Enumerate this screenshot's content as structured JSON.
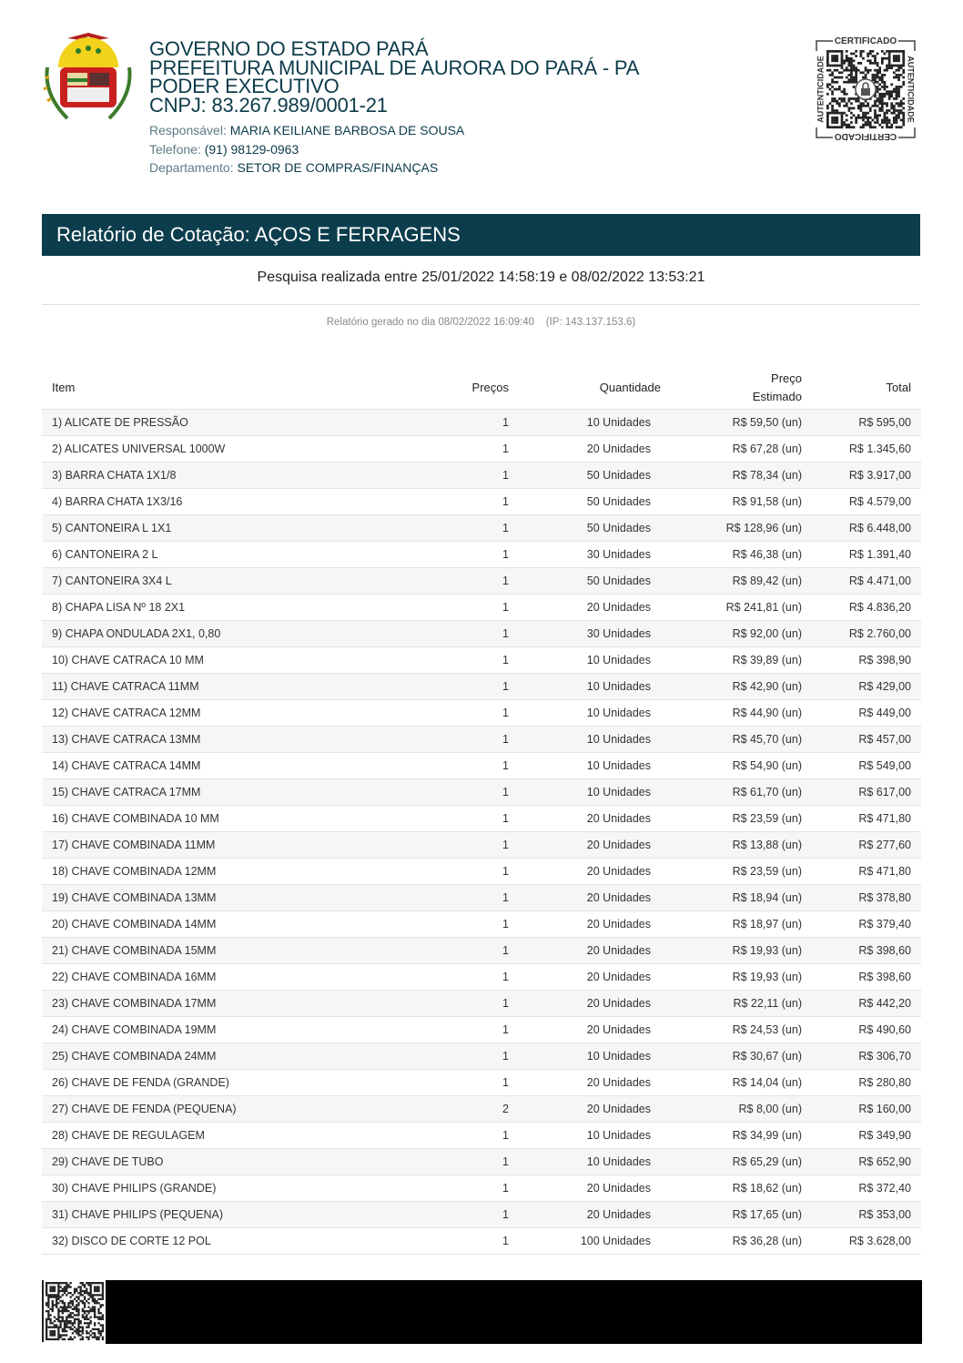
{
  "header": {
    "title_lines": [
      "GOVERNO DO ESTADO PARÁ",
      "PREFEITURA MUNICIPAL DE AURORA DO PARÁ - PA",
      "PODER EXECUTIVO",
      "CNPJ: 83.267.989/0001-21"
    ],
    "responsavel_label": "Responsável:",
    "responsavel": "MARIA KEILIANE BARBOSA DE SOUSA",
    "telefone_label": "Telefone:",
    "telefone": "(91) 98129-0963",
    "departamento_label": "Departamento:",
    "departamento": "SETOR DE COMPRAS/FINANÇAS",
    "seal_text_top": "CERTIFICADO",
    "seal_text_side": "AUTENTICIDADE"
  },
  "report": {
    "title": "Relatório de Cotação: AÇOS E FERRAGENS",
    "period": "Pesquisa realizada entre 25/01/2022 14:58:19 e 08/02/2022 13:53:21",
    "generated": "Relatório gerado no dia 08/02/2022 16:09:40    (IP: 143.137.153.6)"
  },
  "colors": {
    "brand": "#0c3d4c",
    "row_alt": "#f6f6f6"
  },
  "table": {
    "headers": {
      "item": "Item",
      "precos": "Preços",
      "quantidade": "Quantidade",
      "estimado_1": "Preço",
      "estimado_2": "Estimado",
      "total": "Total"
    },
    "rows": [
      [
        "1) ALICATE DE PRESSÃO",
        "1",
        "10 Unidades",
        "R$ 59,50 (un)",
        "R$ 595,00"
      ],
      [
        "2) ALICATES UNIVERSAL 1000W",
        "1",
        "20 Unidades",
        "R$ 67,28 (un)",
        "R$ 1.345,60"
      ],
      [
        "3) BARRA CHATA 1X1/8",
        "1",
        "50 Unidades",
        "R$ 78,34 (un)",
        "R$ 3.917,00"
      ],
      [
        "4) BARRA CHATA 1X3/16",
        "1",
        "50 Unidades",
        "R$ 91,58 (un)",
        "R$ 4.579,00"
      ],
      [
        "5) CANTONEIRA L 1X1",
        "1",
        "50 Unidades",
        "R$ 128,96 (un)",
        "R$ 6.448,00"
      ],
      [
        "6) CANTONEIRA 2 L",
        "1",
        "30 Unidades",
        "R$ 46,38 (un)",
        "R$ 1.391,40"
      ],
      [
        "7) CANTONEIRA 3X4 L",
        "1",
        "50 Unidades",
        "R$ 89,42 (un)",
        "R$ 4.471,00"
      ],
      [
        "8) CHAPA LISA Nº 18 2X1",
        "1",
        "20 Unidades",
        "R$ 241,81 (un)",
        "R$ 4.836,20"
      ],
      [
        "9) CHAPA ONDULADA 2X1, 0,80",
        "1",
        "30 Unidades",
        "R$ 92,00 (un)",
        "R$ 2.760,00"
      ],
      [
        "10) CHAVE CATRACA 10 MM",
        "1",
        "10 Unidades",
        "R$ 39,89 (un)",
        "R$ 398,90"
      ],
      [
        "11) CHAVE CATRACA 11MM",
        "1",
        "10 Unidades",
        "R$ 42,90 (un)",
        "R$ 429,00"
      ],
      [
        "12) CHAVE CATRACA 12MM",
        "1",
        "10 Unidades",
        "R$ 44,90 (un)",
        "R$ 449,00"
      ],
      [
        "13) CHAVE CATRACA 13MM",
        "1",
        "10 Unidades",
        "R$ 45,70 (un)",
        "R$ 457,00"
      ],
      [
        "14) CHAVE CATRACA 14MM",
        "1",
        "10 Unidades",
        "R$ 54,90 (un)",
        "R$ 549,00"
      ],
      [
        "15) CHAVE CATRACA 17MM",
        "1",
        "10 Unidades",
        "R$ 61,70 (un)",
        "R$ 617,00"
      ],
      [
        "16) CHAVE COMBINADA 10 MM",
        "1",
        "20 Unidades",
        "R$ 23,59 (un)",
        "R$ 471,80"
      ],
      [
        "17) CHAVE COMBINADA 11MM",
        "1",
        "20 Unidades",
        "R$ 13,88 (un)",
        "R$ 277,60"
      ],
      [
        "18) CHAVE COMBINADA 12MM",
        "1",
        "20 Unidades",
        "R$ 23,59 (un)",
        "R$ 471,80"
      ],
      [
        "19) CHAVE COMBINADA 13MM",
        "1",
        "20 Unidades",
        "R$ 18,94 (un)",
        "R$ 378,80"
      ],
      [
        "20) CHAVE COMBINADA 14MM",
        "1",
        "20 Unidades",
        "R$ 18,97 (un)",
        "R$ 379,40"
      ],
      [
        "21) CHAVE COMBINADA 15MM",
        "1",
        "20 Unidades",
        "R$ 19,93 (un)",
        "R$ 398,60"
      ],
      [
        "22) CHAVE COMBINADA 16MM",
        "1",
        "20 Unidades",
        "R$ 19,93 (un)",
        "R$ 398,60"
      ],
      [
        "23) CHAVE COMBINADA 17MM",
        "1",
        "20 Unidades",
        "R$ 22,11 (un)",
        "R$ 442,20"
      ],
      [
        "24) CHAVE COMBINADA 19MM",
        "1",
        "20 Unidades",
        "R$ 24,53 (un)",
        "R$ 490,60"
      ],
      [
        "25) CHAVE COMBINADA 24MM",
        "1",
        "10 Unidades",
        "R$ 30,67 (un)",
        "R$ 306,70"
      ],
      [
        "26) CHAVE DE FENDA (GRANDE)",
        "1",
        "20 Unidades",
        "R$ 14,04 (un)",
        "R$ 280,80"
      ],
      [
        "27) CHAVE DE FENDA (PEQUENA)",
        "2",
        "20 Unidades",
        "R$ 8,00 (un)",
        "R$ 160,00"
      ],
      [
        "28) CHAVE DE REGULAGEM",
        "1",
        "10 Unidades",
        "R$ 34,99 (un)",
        "R$ 349,90"
      ],
      [
        "29) CHAVE DE TUBO",
        "1",
        "10 Unidades",
        "R$ 65,29 (un)",
        "R$ 652,90"
      ],
      [
        "30) CHAVE PHILIPS (GRANDE)",
        "1",
        "20 Unidades",
        "R$ 18,62 (un)",
        "R$ 372,40"
      ],
      [
        "31) CHAVE PHILIPS (PEQUENA)",
        "1",
        "20 Unidades",
        "R$ 17,65 (un)",
        "R$ 353,00"
      ],
      [
        "32) DISCO DE CORTE 12 POL",
        "1",
        "100 Unidades",
        "R$ 36,28 (un)",
        "R$ 3.628,00"
      ]
    ]
  }
}
